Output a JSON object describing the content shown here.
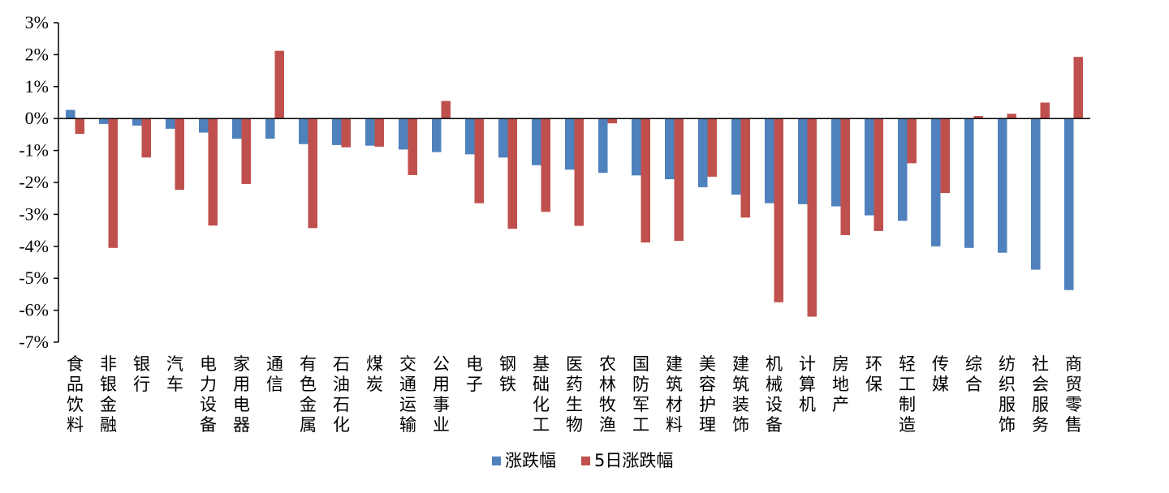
{
  "chart_data": {
    "type": "bar",
    "title": "",
    "xlabel": "",
    "ylabel": "",
    "ylim": [
      -7,
      3
    ],
    "yticks": [
      3,
      2,
      1,
      0,
      -1,
      -2,
      -3,
      -4,
      -5,
      -6,
      -7
    ],
    "ytick_labels": [
      "3%",
      "2%",
      "1%",
      "0%",
      "-1%",
      "-2%",
      "-3%",
      "-4%",
      "-5%",
      "-6%",
      "-7%"
    ],
    "grid": false,
    "legend_position": "bottom-center",
    "categories": [
      "食品饮料",
      "非银金融",
      "银行",
      "汽车",
      "电力设备",
      "家用电器",
      "通信",
      "有色金属",
      "石油石化",
      "煤炭",
      "交通运输",
      "公用事业",
      "电子",
      "钢铁",
      "基础化工",
      "医药生物",
      "农林牧渔",
      "国防军工",
      "建筑材料",
      "美容护理",
      "建筑装饰",
      "机械设备",
      "计算机",
      "房地产",
      "环保",
      "轻工制造",
      "传媒",
      "综合",
      "纺织服饰",
      "社会服务",
      "商贸零售"
    ],
    "series": [
      {
        "name": "涨跌幅",
        "color": "#4f81bd",
        "values": [
          0.27,
          -0.17,
          -0.22,
          -0.32,
          -0.44,
          -0.63,
          -0.63,
          -0.8,
          -0.83,
          -0.85,
          -0.97,
          -1.05,
          -1.12,
          -1.22,
          -1.46,
          -1.6,
          -1.7,
          -1.78,
          -1.9,
          -2.15,
          -2.38,
          -2.65,
          -2.68,
          -2.75,
          -3.03,
          -3.2,
          -4.0,
          -4.05,
          -4.2,
          -4.73,
          -5.37
        ]
      },
      {
        "name": "5日涨跌幅",
        "color": "#c0504d",
        "values": [
          -0.48,
          -4.05,
          -1.22,
          -2.23,
          -3.35,
          -2.05,
          2.12,
          -3.43,
          -0.9,
          -0.88,
          -1.77,
          0.55,
          -2.65,
          -3.45,
          -2.92,
          -3.36,
          -0.15,
          -3.88,
          -3.83,
          -1.82,
          -3.1,
          -5.75,
          -6.2,
          -3.65,
          -3.52,
          -1.4,
          -2.33,
          0.08,
          0.15,
          0.5,
          1.93
        ]
      }
    ]
  }
}
